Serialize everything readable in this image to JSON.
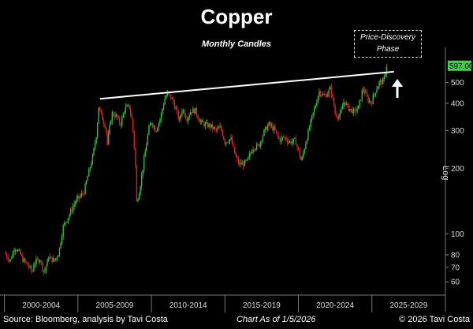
{
  "title": "Copper",
  "subtitle": "Monthly Candles",
  "annotation": "Price-Discovery Phase",
  "price_tag": "597.00",
  "axis_scale_label": "Log",
  "footer": {
    "source": "Source: Bloomberg, analysis by Tavi Costa",
    "chart_as_of": "Chart As of 1/5/2026",
    "copyright": "© 2026 Tavi Costa"
  },
  "colors": {
    "background": "#000000",
    "up": "#2fbf3a",
    "down": "#e02020",
    "resistance_line": "#ffffff",
    "price_tag": "#3fd24a"
  },
  "chart_data": {
    "type": "candlestick",
    "title": "Copper",
    "subtitle": "Monthly Candles",
    "yscale": "log",
    "ylim": [
      53,
      640
    ],
    "xlim": [
      1999.7,
      2030.0
    ],
    "y_ticks": [
      60,
      70,
      80,
      100,
      200,
      300,
      400,
      500
    ],
    "x_periods": [
      "2000-2004",
      "2005-2009",
      "2010-2014",
      "2015-2019",
      "2020-2024",
      "2025-2029"
    ],
    "period_starts": [
      2000,
      2005,
      2010,
      2015,
      2020,
      2025,
      2030
    ],
    "last_price": 597.0,
    "resistance_line": {
      "x": [
        2006.5,
        2026.5
      ],
      "y": [
        420,
        560
      ]
    },
    "price_path": [
      [
        2000.0,
        82
      ],
      [
        2000.4,
        75
      ],
      [
        2000.7,
        87
      ],
      [
        2001.0,
        82
      ],
      [
        2001.3,
        75
      ],
      [
        2001.6,
        72
      ],
      [
        2001.9,
        66
      ],
      [
        2002.0,
        73
      ],
      [
        2002.4,
        77
      ],
      [
        2002.7,
        66
      ],
      [
        2003.0,
        78
      ],
      [
        2003.4,
        75
      ],
      [
        2003.7,
        82
      ],
      [
        2004.0,
        108
      ],
      [
        2004.4,
        122
      ],
      [
        2004.8,
        140
      ],
      [
        2005.0,
        145
      ],
      [
        2005.4,
        155
      ],
      [
        2005.8,
        200
      ],
      [
        2006.0,
        225
      ],
      [
        2006.3,
        300
      ],
      [
        2006.4,
        390
      ],
      [
        2006.6,
        350
      ],
      [
        2006.9,
        310
      ],
      [
        2007.0,
        260
      ],
      [
        2007.3,
        360
      ],
      [
        2007.6,
        350
      ],
      [
        2007.9,
        320
      ],
      [
        2008.2,
        380
      ],
      [
        2008.5,
        385
      ],
      [
        2008.7,
        330
      ],
      [
        2008.9,
        220
      ],
      [
        2009.0,
        140
      ],
      [
        2009.2,
        160
      ],
      [
        2009.5,
        220
      ],
      [
        2009.8,
        300
      ],
      [
        2010.0,
        330
      ],
      [
        2010.3,
        300
      ],
      [
        2010.6,
        340
      ],
      [
        2010.9,
        420
      ],
      [
        2011.1,
        445
      ],
      [
        2011.4,
        420
      ],
      [
        2011.7,
        370
      ],
      [
        2011.9,
        330
      ],
      [
        2012.1,
        380
      ],
      [
        2012.4,
        340
      ],
      [
        2012.7,
        370
      ],
      [
        2013.0,
        370
      ],
      [
        2013.3,
        330
      ],
      [
        2013.6,
        320
      ],
      [
        2014.0,
        315
      ],
      [
        2014.4,
        300
      ],
      [
        2014.7,
        310
      ],
      [
        2015.0,
        265
      ],
      [
        2015.4,
        275
      ],
      [
        2015.7,
        230
      ],
      [
        2015.95,
        210
      ],
      [
        2016.2,
        210
      ],
      [
        2016.5,
        215
      ],
      [
        2016.9,
        250
      ],
      [
        2017.3,
        255
      ],
      [
        2017.7,
        300
      ],
      [
        2018.0,
        320
      ],
      [
        2018.4,
        300
      ],
      [
        2018.7,
        270
      ],
      [
        2019.0,
        280
      ],
      [
        2019.4,
        265
      ],
      [
        2019.8,
        270
      ],
      [
        2020.2,
        215
      ],
      [
        2020.5,
        265
      ],
      [
        2020.9,
        340
      ],
      [
        2021.2,
        400
      ],
      [
        2021.4,
        455
      ],
      [
        2021.8,
        430
      ],
      [
        2022.2,
        470
      ],
      [
        2022.5,
        360
      ],
      [
        2022.8,
        345
      ],
      [
        2023.1,
        410
      ],
      [
        2023.4,
        380
      ],
      [
        2023.8,
        365
      ],
      [
        2024.1,
        385
      ],
      [
        2024.4,
        470
      ],
      [
        2024.7,
        420
      ],
      [
        2024.95,
        400
      ],
      [
        2025.2,
        450
      ],
      [
        2025.5,
        500
      ],
      [
        2025.8,
        505
      ],
      [
        2026.0,
        597
      ]
    ]
  }
}
